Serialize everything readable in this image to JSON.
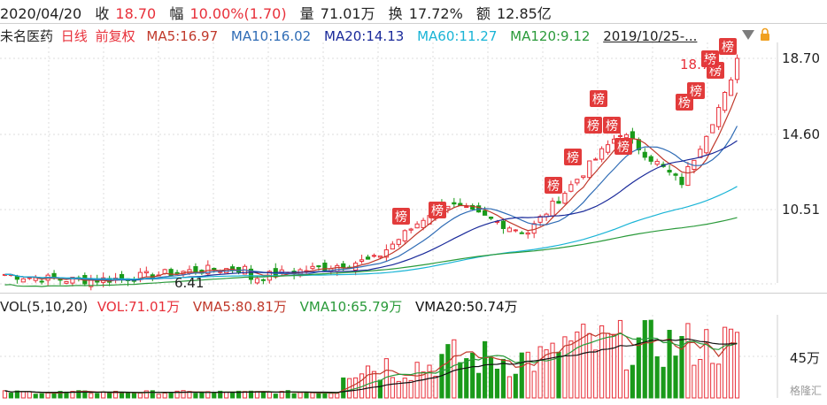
{
  "header": {
    "date": "2020/04/20",
    "close_label": "收",
    "close_value": "18.70",
    "change_label": "幅",
    "change_value": "10.00%(1.70)",
    "volume_label": "量",
    "volume_value": "71.01万",
    "turnover_label": "换",
    "turnover_value": "17.72%",
    "amount_label": "额",
    "amount_value": "12.85亿"
  },
  "ma_line": {
    "stock_name": "未名医药",
    "period": "日线",
    "adjust": "前复权",
    "ma5": "MA5:16.97",
    "ma10": "MA10:16.02",
    "ma20": "MA20:14.13",
    "ma60": "MA60:11.27",
    "ma120": "MA120:9.12",
    "date_range": "2019/10/25-..."
  },
  "price_axis": [
    "18.70",
    "14.60",
    "10.51"
  ],
  "annotations": {
    "low_marker": "6.41",
    "high_marker": "18.70",
    "list_tag": "榜"
  },
  "vol_line": {
    "title": "VOL(5,10,20)",
    "vol": "VOL:71.01万",
    "vma5": "VMA5:80.81万",
    "vma10": "VMA10:65.79万",
    "vma20": "VMA20:50.74万"
  },
  "vol_axis": [
    "45万"
  ],
  "watermark": "格隆汇",
  "colors": {
    "up": "#e8303a",
    "down": "#1a9a1a",
    "ma5": "#c0392b",
    "ma10": "#2f6cb5",
    "ma20": "#1a2a9a",
    "ma60": "#19b4d6",
    "ma120": "#2a9a3a",
    "vma20": "#111111"
  }
}
